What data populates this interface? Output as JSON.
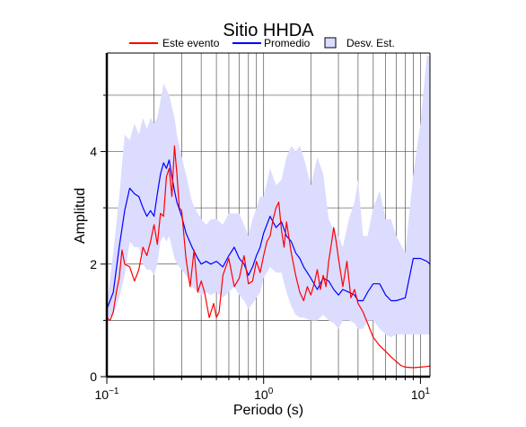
{
  "chart_data": {
    "type": "line",
    "title": "Sitio HHDA",
    "xlabel": "Periodo (s)",
    "ylabel": "Amplitud",
    "x_scale": "log",
    "xlim": [
      0.1,
      11.5
    ],
    "ylim": [
      0,
      5.75
    ],
    "x_ticks": [
      {
        "base": "10",
        "exp": "−1",
        "value": 0.1
      },
      {
        "base": "10",
        "exp": "0",
        "value": 1
      },
      {
        "base": "10",
        "exp": "1",
        "value": 10
      }
    ],
    "y_ticks": [
      "0",
      "2",
      "4"
    ],
    "y_tick_values": [
      0,
      2,
      4
    ],
    "grid": true,
    "legend_position": "top",
    "legend": [
      {
        "label": "Este evento",
        "kind": "line",
        "color": "#ff0000"
      },
      {
        "label": "Promedio",
        "kind": "line",
        "color": "#0000ff"
      },
      {
        "label": "Desv. Est.",
        "kind": "band",
        "color": "#dcdcff"
      }
    ],
    "series": [
      {
        "name": "Este evento",
        "color": "#ff0000",
        "x": [
          0.1,
          0.105,
          0.11,
          0.115,
          0.12,
          0.125,
          0.13,
          0.14,
          0.15,
          0.16,
          0.17,
          0.18,
          0.19,
          0.2,
          0.21,
          0.22,
          0.23,
          0.24,
          0.25,
          0.26,
          0.27,
          0.28,
          0.29,
          0.3,
          0.32,
          0.34,
          0.36,
          0.38,
          0.4,
          0.42,
          0.45,
          0.48,
          0.5,
          0.52,
          0.55,
          0.6,
          0.65,
          0.7,
          0.75,
          0.8,
          0.85,
          0.9,
          0.95,
          1.0,
          1.05,
          1.1,
          1.15,
          1.2,
          1.25,
          1.3,
          1.35,
          1.4,
          1.5,
          1.6,
          1.7,
          1.8,
          1.9,
          2.0,
          2.1,
          2.2,
          2.3,
          2.4,
          2.5,
          2.6,
          2.7,
          2.8,
          2.9,
          3.0,
          3.2,
          3.4,
          3.6,
          3.8,
          4.0,
          4.3,
          4.6,
          5.0,
          5.5,
          6.0,
          6.5,
          7.0,
          7.5,
          8.0,
          9.0,
          10.0,
          11.0,
          11.5
        ],
        "y": [
          1.05,
          1.0,
          1.15,
          1.5,
          1.75,
          2.25,
          2.0,
          1.95,
          1.7,
          1.9,
          2.3,
          2.15,
          2.4,
          2.7,
          2.35,
          2.9,
          2.85,
          3.55,
          3.7,
          3.2,
          4.1,
          3.6,
          3.0,
          2.95,
          2.1,
          1.6,
          2.25,
          1.5,
          1.7,
          1.5,
          1.05,
          1.3,
          1.05,
          1.15,
          1.8,
          2.1,
          1.6,
          1.75,
          2.15,
          1.65,
          1.7,
          2.05,
          1.85,
          2.15,
          2.4,
          2.5,
          2.8,
          3.0,
          3.1,
          2.6,
          2.3,
          2.75,
          2.2,
          1.8,
          1.5,
          1.35,
          1.6,
          1.45,
          1.65,
          1.9,
          1.55,
          1.8,
          1.6,
          2.05,
          2.35,
          2.65,
          2.4,
          2.1,
          1.6,
          2.05,
          1.4,
          1.55,
          1.3,
          1.15,
          0.95,
          0.7,
          0.55,
          0.45,
          0.35,
          0.27,
          0.2,
          0.17,
          0.16,
          0.17,
          0.18,
          0.19
        ]
      },
      {
        "name": "Promedio",
        "color": "#0000ff",
        "x": [
          0.1,
          0.11,
          0.12,
          0.13,
          0.14,
          0.15,
          0.16,
          0.17,
          0.18,
          0.19,
          0.2,
          0.21,
          0.22,
          0.23,
          0.24,
          0.25,
          0.26,
          0.27,
          0.28,
          0.3,
          0.32,
          0.35,
          0.38,
          0.4,
          0.43,
          0.46,
          0.5,
          0.55,
          0.6,
          0.65,
          0.7,
          0.75,
          0.8,
          0.85,
          0.9,
          0.95,
          1.0,
          1.1,
          1.2,
          1.3,
          1.4,
          1.5,
          1.6,
          1.7,
          1.8,
          2.0,
          2.2,
          2.4,
          2.6,
          2.8,
          3.0,
          3.2,
          3.5,
          3.8,
          4.0,
          4.3,
          4.6,
          5.0,
          5.5,
          6.0,
          6.5,
          7.0,
          8.0,
          9.0,
          10.0,
          11.0,
          11.5
        ],
        "y": [
          1.2,
          1.5,
          2.3,
          2.95,
          3.35,
          3.25,
          3.2,
          3.0,
          2.85,
          2.95,
          2.85,
          3.25,
          3.6,
          3.8,
          3.7,
          3.85,
          3.55,
          3.3,
          3.1,
          2.85,
          2.55,
          2.3,
          2.1,
          2.0,
          2.05,
          2.0,
          2.05,
          1.95,
          2.15,
          2.3,
          2.1,
          2.0,
          1.8,
          1.95,
          2.15,
          2.3,
          2.55,
          2.85,
          2.65,
          2.75,
          2.5,
          2.4,
          2.2,
          2.1,
          1.95,
          1.75,
          1.55,
          1.75,
          1.7,
          1.55,
          1.45,
          1.55,
          1.5,
          1.45,
          1.35,
          1.35,
          1.5,
          1.65,
          1.65,
          1.45,
          1.35,
          1.35,
          1.4,
          2.1,
          2.1,
          2.05,
          2.0
        ]
      }
    ],
    "band": {
      "name": "Desv. Est.",
      "color": "#dcdcff",
      "x": [
        0.1,
        0.11,
        0.12,
        0.13,
        0.14,
        0.15,
        0.16,
        0.17,
        0.18,
        0.19,
        0.2,
        0.21,
        0.22,
        0.23,
        0.24,
        0.25,
        0.26,
        0.27,
        0.28,
        0.3,
        0.32,
        0.35,
        0.38,
        0.4,
        0.43,
        0.46,
        0.5,
        0.55,
        0.6,
        0.65,
        0.7,
        0.75,
        0.8,
        0.85,
        0.9,
        0.95,
        1.0,
        1.1,
        1.2,
        1.3,
        1.4,
        1.5,
        1.6,
        1.7,
        1.8,
        2.0,
        2.2,
        2.4,
        2.6,
        2.8,
        3.0,
        3.2,
        3.5,
        3.8,
        4.0,
        4.3,
        4.6,
        5.0,
        5.5,
        6.0,
        6.5,
        7.0,
        8.0,
        9.0,
        10.0,
        11.0,
        11.5
      ],
      "upper": [
        1.3,
        2.2,
        3.2,
        4.3,
        4.2,
        4.5,
        4.3,
        4.6,
        4.4,
        4.6,
        4.5,
        4.6,
        4.9,
        5.2,
        5.1,
        5.0,
        4.8,
        4.6,
        4.3,
        3.9,
        3.6,
        3.1,
        2.9,
        2.8,
        2.7,
        2.8,
        2.8,
        2.7,
        2.9,
        2.9,
        2.9,
        2.7,
        2.5,
        2.8,
        3.0,
        3.2,
        3.2,
        3.7,
        3.4,
        3.5,
        3.9,
        4.1,
        4.0,
        4.1,
        3.9,
        3.4,
        3.9,
        3.6,
        2.8,
        2.6,
        2.5,
        2.3,
        2.8,
        3.1,
        3.5,
        2.5,
        2.5,
        3.0,
        3.3,
        2.8,
        2.8,
        2.5,
        2.2,
        3.6,
        4.5,
        5.7,
        5.7
      ],
      "lower": [
        1.0,
        1.1,
        1.4,
        1.8,
        2.4,
        2.3,
        2.3,
        2.0,
        1.9,
        1.9,
        1.8,
        2.0,
        2.4,
        2.5,
        2.4,
        2.5,
        2.3,
        2.1,
        2.0,
        1.9,
        1.8,
        1.6,
        1.5,
        1.45,
        1.5,
        1.45,
        1.5,
        1.4,
        1.5,
        1.6,
        1.45,
        1.35,
        1.2,
        1.3,
        1.4,
        1.5,
        1.75,
        1.95,
        1.85,
        1.85,
        1.5,
        1.25,
        1.1,
        1.05,
        1.05,
        1.0,
        1.0,
        1.1,
        1.0,
        0.95,
        0.85,
        1.0,
        1.0,
        0.95,
        0.85,
        0.85,
        1.0,
        1.0,
        0.85,
        0.75,
        0.7,
        0.75,
        0.75,
        0.75,
        0.75,
        0.75,
        0.75
      ]
    }
  }
}
